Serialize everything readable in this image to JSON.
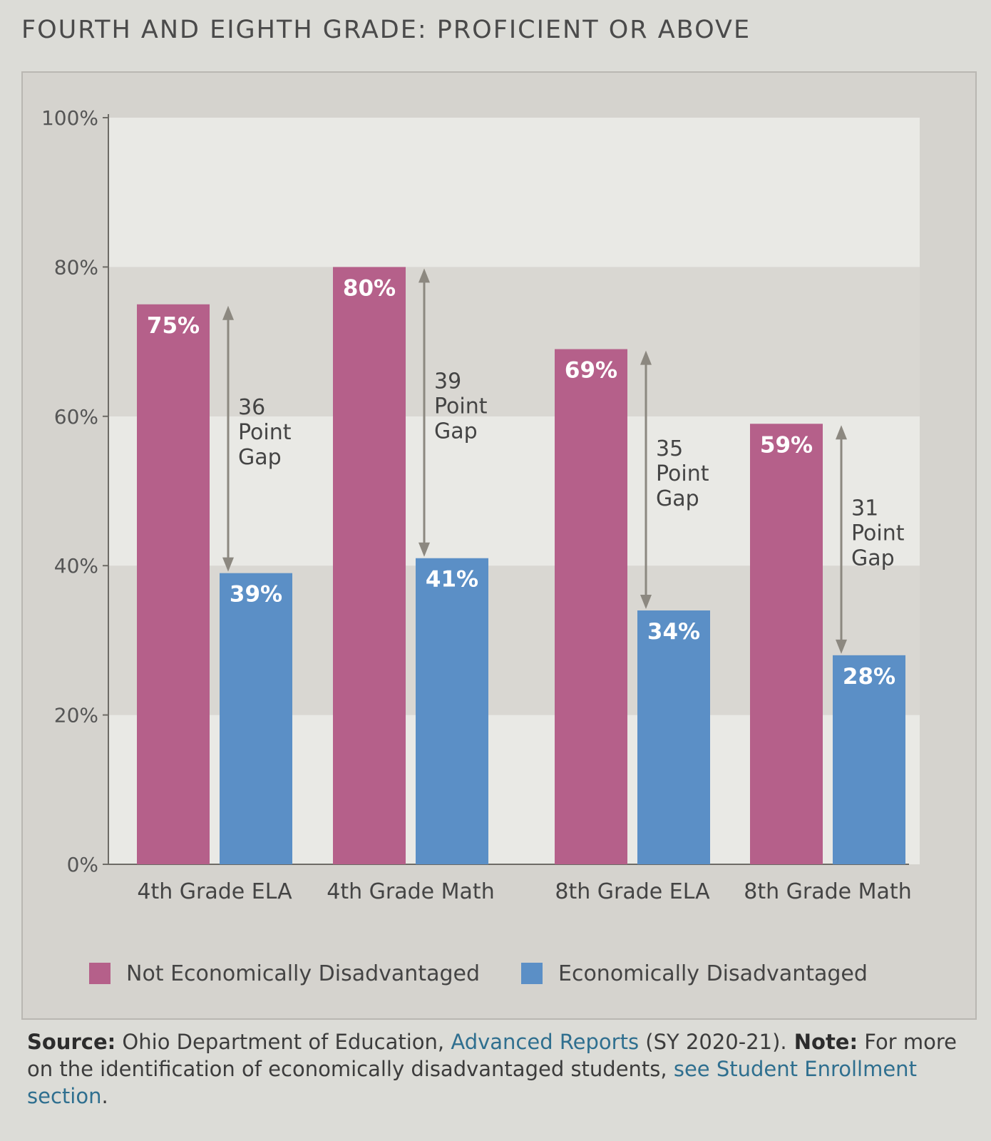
{
  "title": "FOURTH AND EIGHTH GRADE: PROFICIENT OR ABOVE",
  "colors": {
    "not_disadvantaged": "#b5608a",
    "disadvantaged": "#5b8fc6",
    "gap_arrow": "#8c8880"
  },
  "chart_data": {
    "type": "bar",
    "categories": [
      "4th Grade ELA",
      "4th Grade Math",
      "8th Grade ELA",
      "8th Grade Math"
    ],
    "series": [
      {
        "name": "Not Economically Disadvantaged",
        "values": [
          75,
          80,
          69,
          59
        ],
        "labels": [
          "75%",
          "80%",
          "69%",
          "59%"
        ]
      },
      {
        "name": "Economically Disadvantaged",
        "values": [
          39,
          41,
          34,
          28
        ],
        "labels": [
          "39%",
          "41%",
          "34%",
          "28%"
        ]
      }
    ],
    "gap_annotations": [
      [
        "36",
        "Point",
        "Gap"
      ],
      [
        "39",
        "Point",
        "Gap"
      ],
      [
        "35",
        "Point",
        "Gap"
      ],
      [
        "31",
        "Point",
        "Gap"
      ]
    ],
    "y_ticks": [
      "0%",
      "20%",
      "40%",
      "60%",
      "80%",
      "100%"
    ],
    "ylim": [
      0,
      100
    ],
    "xlabel": "",
    "ylabel": "",
    "grid": "alternating bands",
    "legend_position": "bottom"
  },
  "legend": {
    "items": [
      "Not Economically Disadvantaged",
      "Economically Disadvantaged"
    ]
  },
  "footer": {
    "source_label": "Source:",
    "source_text": " Ohio Department of Education, ",
    "source_link": "Advanced Reports",
    "source_year": " (SY 2020-21).",
    "note_label": " Note:",
    "note_text": " For more on the identification of economically disadvantaged students, ",
    "note_link": "see Student Enrollment section",
    "note_end": "."
  }
}
